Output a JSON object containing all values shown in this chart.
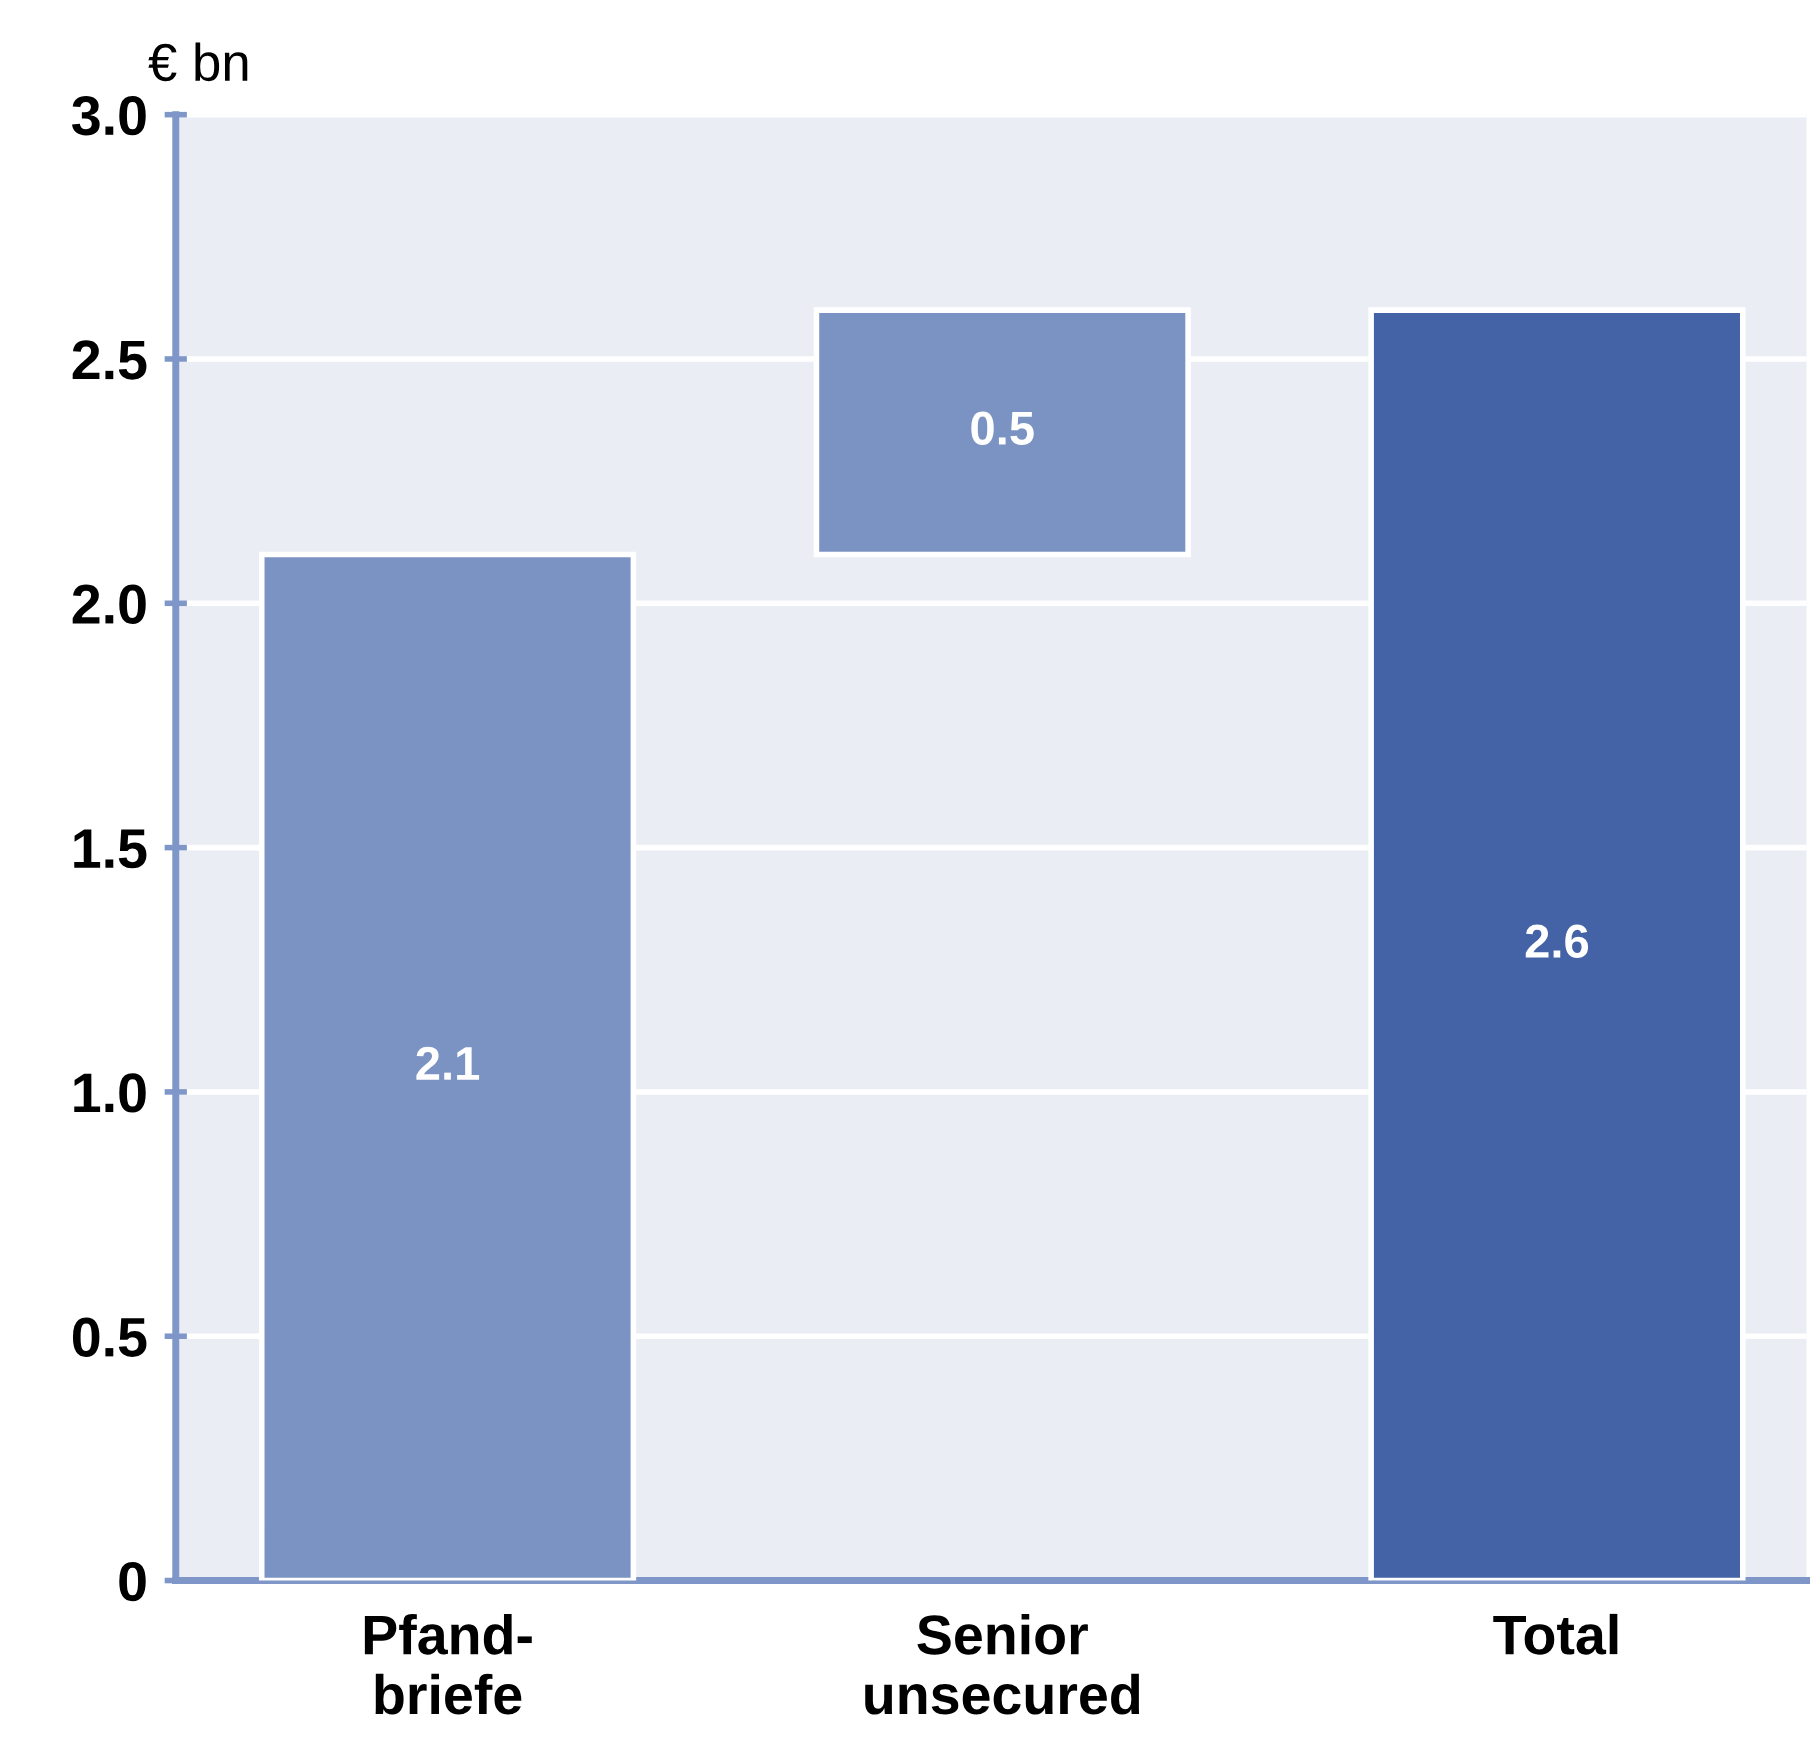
{
  "chart_data": {
    "type": "bar",
    "ylabel": "€ bn",
    "categories": [
      "Pfand-\nbriefe",
      "Senior\nunsecured",
      "Total"
    ],
    "values": [
      2.1,
      0.5,
      2.6
    ],
    "base": [
      0,
      2.1,
      0
    ],
    "colors": [
      "#7b93c3",
      "#7b93c3",
      "#4363a6"
    ],
    "ylim": [
      0,
      3
    ],
    "yticks": [
      0,
      0.5,
      {
        "value": 1,
        "label": "1.0"
      },
      1.5,
      {
        "value": 2,
        "label": "2.0"
      },
      2.5,
      {
        "value": 3,
        "label": "3.0"
      }
    ],
    "grid": "y",
    "data_labels": true
  }
}
